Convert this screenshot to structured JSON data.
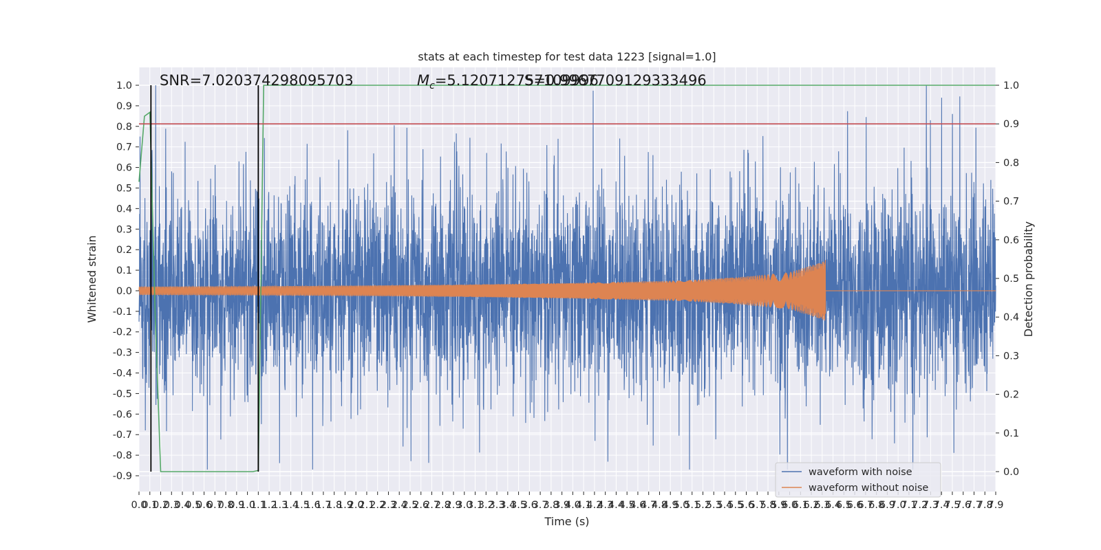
{
  "chart_data": {
    "type": "line",
    "title": "stats at each timestep for test data 1223 [signal=1.0]",
    "xlabel": "Time (s)",
    "ylabel": "Whitened strain",
    "y2label": "Detection probability",
    "xlim": [
      0.0,
      7.9
    ],
    "ylim": [
      -0.9,
      1.0
    ],
    "y2lim": [
      0.0,
      1.0
    ],
    "x_tick_step": 0.1,
    "y_ticks": [
      -0.9,
      -0.8,
      -0.7,
      -0.6,
      -0.5,
      -0.4,
      -0.3,
      -0.2,
      -0.1,
      0.0,
      0.1,
      0.2,
      0.3,
      0.4,
      0.5,
      0.6,
      0.7,
      0.8,
      0.9,
      1.0
    ],
    "y2_ticks": [
      0.0,
      0.1,
      0.2,
      0.3,
      0.4,
      0.5,
      0.6,
      0.7,
      0.8,
      0.9,
      1.0
    ],
    "grid": true,
    "legend_position": "lower-right",
    "series": [
      {
        "name": "waveform with noise",
        "color": "#4c72b0",
        "approx_amplitude_range": [
          -0.87,
          1.0
        ]
      },
      {
        "name": "waveform without noise",
        "color": "#dd8452",
        "envelope": {
          "x": [
            0.0,
            1.0,
            2.0,
            3.0,
            4.0,
            5.0,
            5.5,
            6.0,
            6.3,
            6.33
          ],
          "half_amplitude": [
            0.02,
            0.022,
            0.025,
            0.03,
            0.038,
            0.05,
            0.065,
            0.09,
            0.14,
            0.15
          ],
          "after_merger_value": 0.0
        }
      },
      {
        "color": "#55a868",
        "axis": "y2",
        "x": [
          0.0,
          0.05,
          0.1,
          0.15,
          0.2,
          0.25,
          1.05,
          1.1,
          1.15,
          7.9
        ],
        "values": [
          0.75,
          0.92,
          0.93,
          0.4,
          0.0,
          0.0,
          0.0,
          0.003,
          1.0,
          1.0
        ]
      },
      {
        "color": "#c44e52",
        "axis": "y2",
        "type": "hline",
        "value": 0.9
      }
    ],
    "vlines": [
      {
        "x": 0.11,
        "color": "#000000"
      },
      {
        "x": 1.1,
        "color": "#000000"
      }
    ],
    "annotations": {
      "snr": "SNR=7.020374298095703",
      "mc_symbol": "M",
      "mc_subscript": "c",
      "mc_value": "=5.120712757109996",
      "overlap": "S=0.9967709129333496"
    }
  },
  "colors": {
    "plot_bg": "#eaeaf2",
    "grid": "#ffffff",
    "text": "#262626"
  }
}
